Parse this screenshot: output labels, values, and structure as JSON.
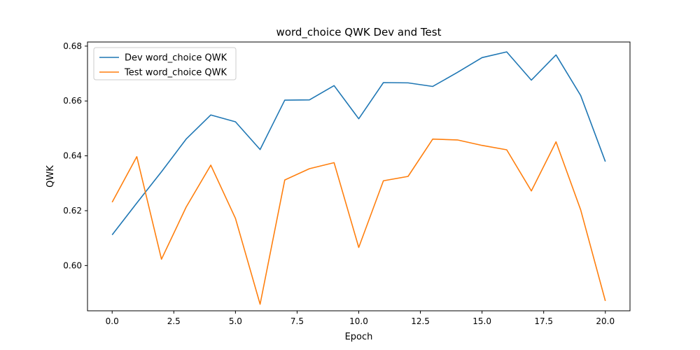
{
  "chart_data": {
    "type": "line",
    "title": "word_choice QWK Dev and Test",
    "xlabel": "Epoch",
    "ylabel": "QWK",
    "xlim": [
      -1.0,
      21.0
    ],
    "ylim": [
      0.5835,
      0.6815
    ],
    "x_ticks": [
      0.0,
      2.5,
      5.0,
      7.5,
      10.0,
      12.5,
      15.0,
      17.5,
      20.0
    ],
    "x_tick_labels": [
      "0.0",
      "2.5",
      "5.0",
      "7.5",
      "10.0",
      "12.5",
      "15.0",
      "17.5",
      "20.0"
    ],
    "y_ticks": [
      0.6,
      0.62,
      0.64,
      0.66,
      0.68
    ],
    "y_tick_labels": [
      "0.60",
      "0.62",
      "0.64",
      "0.66",
      "0.68"
    ],
    "grid": false,
    "legend_position": "top-left",
    "x": [
      0,
      1,
      2,
      3,
      4,
      5,
      6,
      7,
      8,
      9,
      10,
      11,
      12,
      13,
      14,
      15,
      16,
      17,
      18,
      19,
      20
    ],
    "series": [
      {
        "name": "Dev word_choice QWK",
        "color": "#1f77b4",
        "values": [
          0.6112,
          0.6228,
          0.6342,
          0.6461,
          0.6549,
          0.6524,
          0.6423,
          0.6603,
          0.6604,
          0.6656,
          0.6535,
          0.6667,
          0.6666,
          0.6653,
          0.6704,
          0.6758,
          0.6779,
          0.6676,
          0.6768,
          0.662,
          0.6379
        ]
      },
      {
        "name": "Test word_choice QWK",
        "color": "#ff7f0e",
        "values": [
          0.6231,
          0.6397,
          0.6023,
          0.6213,
          0.6366,
          0.6172,
          0.5859,
          0.6312,
          0.6353,
          0.6375,
          0.6066,
          0.6309,
          0.6325,
          0.6461,
          0.6458,
          0.6438,
          0.6422,
          0.6272,
          0.6451,
          0.6203,
          0.5871
        ]
      }
    ]
  }
}
